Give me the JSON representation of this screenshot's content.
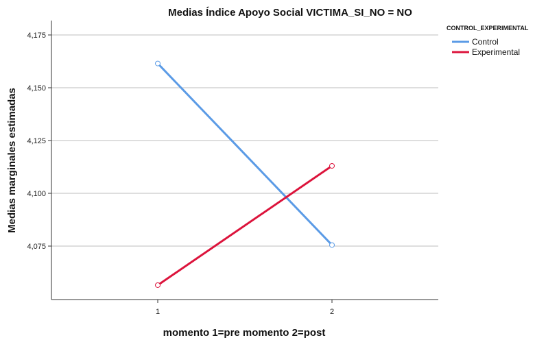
{
  "chart_data": {
    "type": "line",
    "title": "Medias Índice Apoyo Social VICTIMA_SI_NO = NO",
    "xlabel": "momento 1=pre momento 2=post",
    "ylabel": "Medias marginales estimadas",
    "categories": [
      "1",
      "2"
    ],
    "y_ticks": [
      "4,075",
      "4,100",
      "4,125",
      "4,150",
      "4,175"
    ],
    "y_tick_values": [
      4.075,
      4.1,
      4.125,
      4.15,
      4.175
    ],
    "ylim": [
      4.05,
      4.18
    ],
    "grid": true,
    "legend_title": "CONTROL_EXPERIMENTAL",
    "legend_position": "top-right",
    "series": [
      {
        "name": "Control",
        "color": "#5b9be6",
        "values": [
          4.1615,
          4.0755
        ]
      },
      {
        "name": "Experimental",
        "color": "#dc143c",
        "values": [
          4.0565,
          4.113
        ]
      }
    ]
  }
}
